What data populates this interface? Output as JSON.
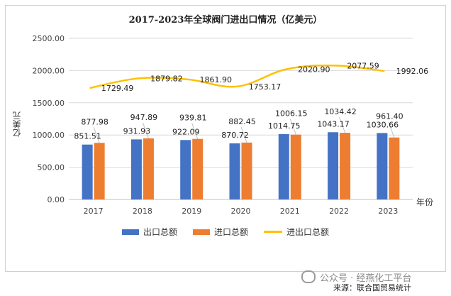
{
  "title": "2017-2023年全球阀门进出口情况（亿美元）",
  "ylabel": "亿美元",
  "x_unit": "年份",
  "legend": [
    "出口总额",
    "进口总额",
    "进出口总额"
  ],
  "watermark": "公众号 · 经燕化工平台",
  "source": "来源：联合国贸易统计",
  "colors": {
    "export": "#4472C4",
    "import": "#ED7D31",
    "total": "#FFC000"
  },
  "chart_data": {
    "type": "bar",
    "categories": [
      "2017",
      "2018",
      "2019",
      "2020",
      "2021",
      "2022",
      "2023"
    ],
    "series": [
      {
        "name": "出口总额",
        "values": [
          851.51,
          931.93,
          922.09,
          870.72,
          1014.75,
          1043.17,
          1030.66
        ],
        "labels": [
          "851.51",
          "931.93",
          "922.09",
          "870.72",
          "1014.75",
          "1043.17",
          "1030.66"
        ]
      },
      {
        "name": "进口总额",
        "values": [
          877.98,
          947.89,
          939.81,
          882.45,
          1006.15,
          1034.42,
          961.4
        ],
        "labels": [
          "877.98",
          "947.89",
          "939.81",
          "882.45",
          "1006.15",
          "1034.42",
          "961.40"
        ]
      },
      {
        "name": "进出口总额",
        "type": "line",
        "values": [
          1729.49,
          1879.82,
          1861.9,
          1753.17,
          2020.9,
          2077.59,
          1992.06
        ],
        "labels": [
          "1729.49",
          "1879.82",
          "1861.90",
          "1753.17",
          "2020.90",
          "2077.59",
          "1992.06"
        ]
      }
    ],
    "yticks": [
      "0.00",
      "500.00",
      "1000.00",
      "1500.00",
      "2000.00",
      "2500.00"
    ],
    "ylim": [
      0,
      2500
    ],
    "grid": true,
    "legend_position": "bottom"
  }
}
